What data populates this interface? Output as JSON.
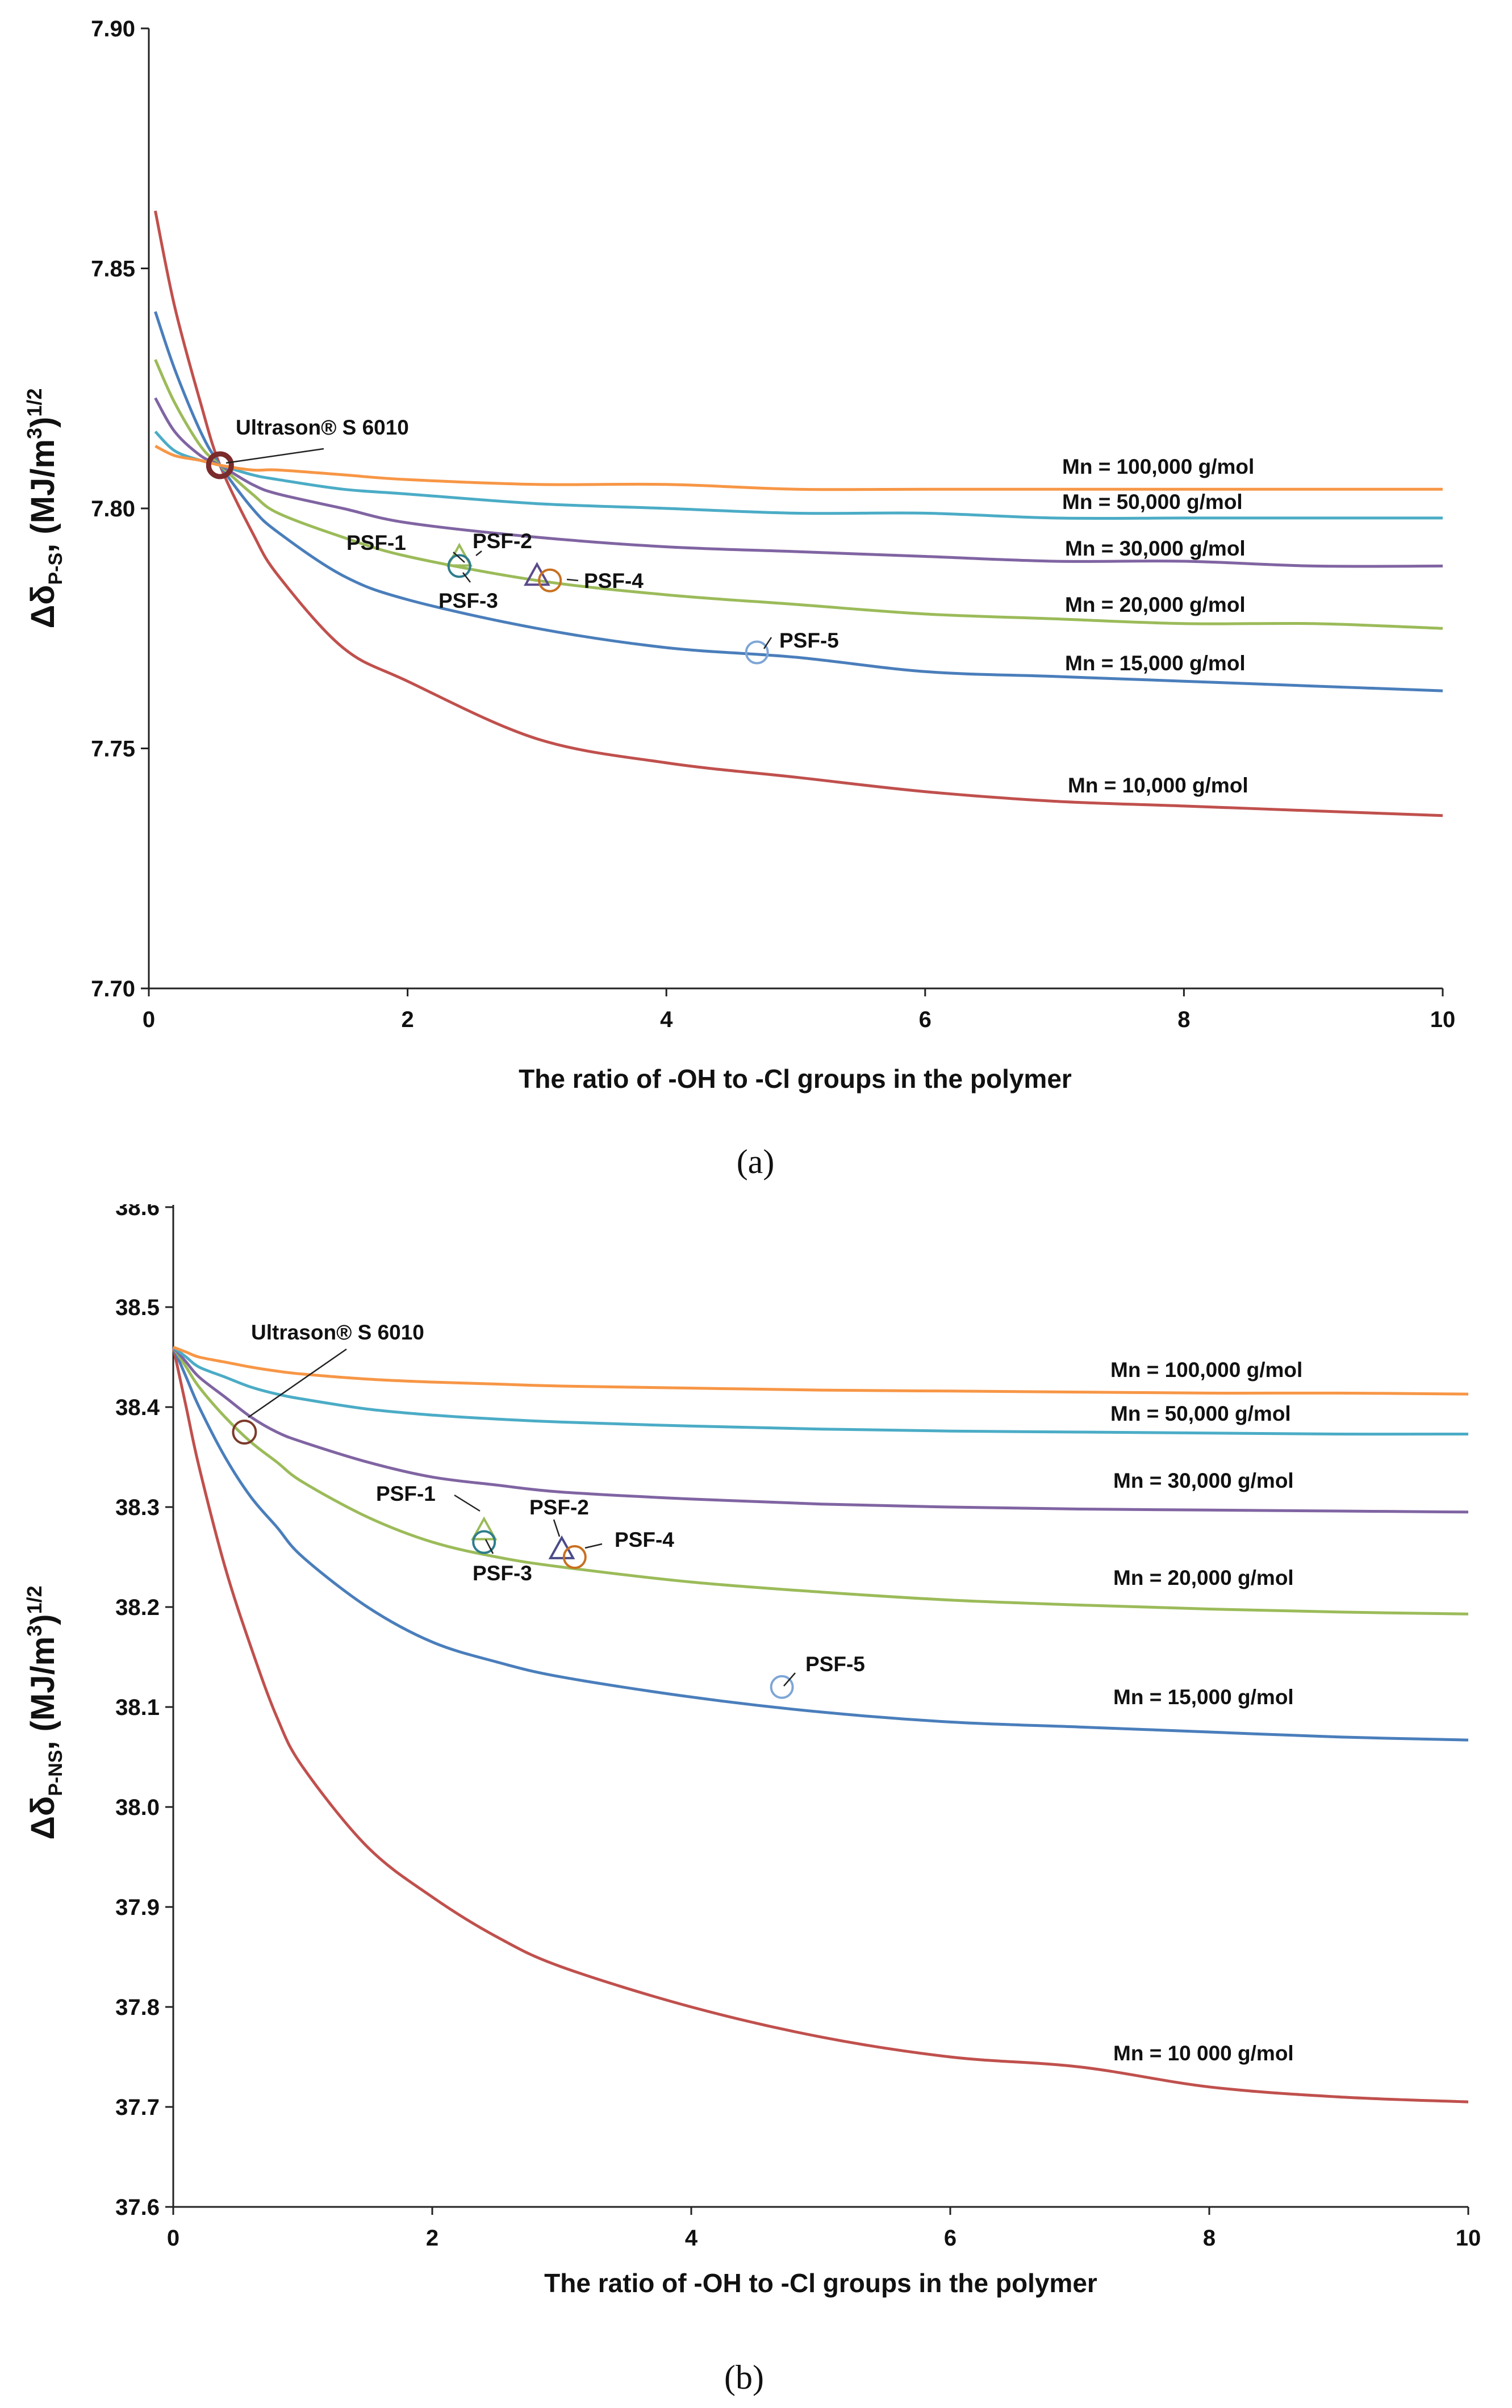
{
  "chart_data": [
    {
      "panel_label": "(a)",
      "type": "line",
      "xlabel": "The ratio of -OH to -Cl groups in the polymer",
      "ylabel": {
        "prefix": "Δδ",
        "sub": "P-S",
        "mid": ", (MJ/m",
        "sup1": "3",
        "close": ")",
        "sup2": "1/2"
      },
      "xlim": [
        0,
        10
      ],
      "ylim": [
        7.7,
        7.9
      ],
      "xticks": [
        "0",
        "2",
        "4",
        "6",
        "8",
        "10"
      ],
      "yticks": [
        "7.70",
        "7.75",
        "7.80",
        "7.85",
        "7.90"
      ],
      "series": [
        {
          "name": "Mn = 10,000 g/mol",
          "color": "#c0504d",
          "x": [
            0.05,
            0.2,
            0.4,
            0.55,
            0.8,
            1.0,
            1.5,
            2.0,
            3.0,
            4.0,
            5.0,
            6.0,
            7.0,
            8.0,
            9.0,
            10.0
          ],
          "y": [
            7.862,
            7.842,
            7.822,
            7.809,
            7.795,
            7.786,
            7.771,
            7.764,
            7.752,
            7.747,
            7.744,
            7.741,
            7.739,
            7.738,
            7.737,
            7.736
          ]
        },
        {
          "name": "Mn = 15,000 g/mol",
          "color": "#4a7ebb",
          "x": [
            0.05,
            0.2,
            0.4,
            0.55,
            0.8,
            1.0,
            1.5,
            2.0,
            3.0,
            4.0,
            5.0,
            6.0,
            7.0,
            8.0,
            9.0,
            10.0
          ],
          "y": [
            7.841,
            7.829,
            7.816,
            7.809,
            7.8,
            7.795,
            7.786,
            7.781,
            7.775,
            7.771,
            7.769,
            7.766,
            7.765,
            7.764,
            7.763,
            7.762
          ]
        },
        {
          "name": "Mn = 20,000 g/mol",
          "color": "#9bbb59",
          "x": [
            0.05,
            0.2,
            0.4,
            0.55,
            0.8,
            1.0,
            1.5,
            2.0,
            3.0,
            4.0,
            5.0,
            6.0,
            7.0,
            8.0,
            9.0,
            10.0
          ],
          "y": [
            7.831,
            7.822,
            7.813,
            7.809,
            7.803,
            7.799,
            7.794,
            7.79,
            7.785,
            7.782,
            7.78,
            7.778,
            7.777,
            7.776,
            7.776,
            7.775
          ]
        },
        {
          "name": "Mn = 30,000 g/mol",
          "color": "#8064a2",
          "x": [
            0.05,
            0.2,
            0.4,
            0.55,
            0.8,
            1.0,
            1.5,
            2.0,
            3.0,
            4.0,
            5.0,
            6.0,
            7.0,
            8.0,
            9.0,
            10.0
          ],
          "y": [
            7.823,
            7.816,
            7.811,
            7.809,
            7.805,
            7.803,
            7.8,
            7.797,
            7.794,
            7.792,
            7.791,
            7.79,
            7.789,
            7.789,
            7.788,
            7.788
          ]
        },
        {
          "name": "Mn = 50,000 g/mol",
          "color": "#4bacc6",
          "x": [
            0.05,
            0.2,
            0.4,
            0.55,
            0.8,
            1.0,
            1.5,
            2.0,
            3.0,
            4.0,
            5.0,
            6.0,
            7.0,
            8.0,
            9.0,
            10.0
          ],
          "y": [
            7.816,
            7.812,
            7.81,
            7.809,
            7.807,
            7.806,
            7.804,
            7.803,
            7.801,
            7.8,
            7.799,
            7.799,
            7.798,
            7.798,
            7.798,
            7.798
          ]
        },
        {
          "name": "Mn = 100,000 g/mol",
          "color": "#f79646",
          "x": [
            0.05,
            0.2,
            0.4,
            0.55,
            0.8,
            1.0,
            1.5,
            2.0,
            3.0,
            4.0,
            5.0,
            6.0,
            7.0,
            8.0,
            9.0,
            10.0
          ],
          "y": [
            7.813,
            7.811,
            7.81,
            7.809,
            7.808,
            7.808,
            7.807,
            7.806,
            7.805,
            7.805,
            7.804,
            7.804,
            7.804,
            7.804,
            7.804,
            7.804
          ]
        }
      ],
      "points": [
        {
          "label": "Ultrason® S 6010",
          "x": 0.55,
          "y": 7.809,
          "shape": "circle",
          "color": "#7b2b2b"
        },
        {
          "label": "PSF-1",
          "x": 2.4,
          "y": 7.79,
          "shape": "triangle",
          "color": "#9bbb59"
        },
        {
          "label": "PSF-2",
          "x": 3.0,
          "y": 7.786,
          "shape": "triangle",
          "color": "#5a4a8a"
        },
        {
          "label": "PSF-3",
          "x": 2.4,
          "y": 7.788,
          "shape": "circle",
          "color": "#2e7d8c"
        },
        {
          "label": "PSF-4",
          "x": 3.1,
          "y": 7.785,
          "shape": "circle",
          "color": "#c8701f"
        },
        {
          "label": "PSF-5",
          "x": 4.7,
          "y": 7.77,
          "shape": "circle",
          "color": "#7ea6d6"
        }
      ]
    },
    {
      "panel_label": "(b)",
      "type": "line",
      "xlabel": "The ratio of -OH to -Cl groups in the polymer",
      "ylabel": {
        "prefix": "Δδ",
        "sub": "P-NS",
        "mid": ", (MJ/m",
        "sup1": "3",
        "close": ")",
        "sup2": "1/2"
      },
      "xlim": [
        0,
        10
      ],
      "ylim": [
        37.6,
        38.6
      ],
      "xticks": [
        "0",
        "2",
        "4",
        "6",
        "8",
        "10"
      ],
      "yticks": [
        "37.6",
        "37.7",
        "37.8",
        "37.9",
        "38.0",
        "38.1",
        "38.2",
        "38.3",
        "38.4",
        "38.5",
        "38.6"
      ],
      "series": [
        {
          "name": "Mn = 10 000 g/mol",
          "color": "#c0504d",
          "x": [
            0.0,
            0.1,
            0.2,
            0.4,
            0.6,
            0.8,
            1.0,
            1.5,
            2.0,
            2.5,
            3.0,
            4.0,
            5.0,
            6.0,
            7.0,
            8.0,
            9.0,
            10.0
          ],
          "y": [
            38.46,
            38.4,
            38.34,
            38.24,
            38.16,
            38.09,
            38.04,
            37.96,
            37.91,
            37.87,
            37.84,
            37.8,
            37.77,
            37.75,
            37.74,
            37.72,
            37.71,
            37.705
          ]
        },
        {
          "name": "Mn = 15,000 g/mol",
          "color": "#4a7ebb",
          "x": [
            0.0,
            0.1,
            0.2,
            0.4,
            0.6,
            0.8,
            1.0,
            1.5,
            2.0,
            2.5,
            3.0,
            4.0,
            5.0,
            6.0,
            7.0,
            8.0,
            9.0,
            10.0
          ],
          "y": [
            38.46,
            38.43,
            38.4,
            38.35,
            38.31,
            38.28,
            38.25,
            38.2,
            38.165,
            38.145,
            38.13,
            38.11,
            38.095,
            38.085,
            38.08,
            38.075,
            38.07,
            38.067
          ]
        },
        {
          "name": "Mn = 20,000 g/mol",
          "color": "#9bbb59",
          "x": [
            0.0,
            0.1,
            0.2,
            0.4,
            0.6,
            0.8,
            1.0,
            1.5,
            2.0,
            2.5,
            3.0,
            4.0,
            5.0,
            6.0,
            7.0,
            8.0,
            9.0,
            10.0
          ],
          "y": [
            38.46,
            38.44,
            38.42,
            38.39,
            38.365,
            38.345,
            38.325,
            38.29,
            38.265,
            38.25,
            38.24,
            38.225,
            38.215,
            38.207,
            38.202,
            38.198,
            38.195,
            38.193
          ]
        },
        {
          "name": "Mn = 30,000 g/mol",
          "color": "#8064a2",
          "x": [
            0.0,
            0.1,
            0.2,
            0.4,
            0.6,
            0.8,
            1.0,
            1.5,
            2.0,
            2.5,
            3.0,
            4.0,
            5.0,
            6.0,
            7.0,
            8.0,
            9.0,
            10.0
          ],
          "y": [
            38.46,
            38.445,
            38.43,
            38.41,
            38.39,
            38.375,
            38.365,
            38.345,
            38.33,
            38.322,
            38.315,
            38.308,
            38.303,
            38.3,
            38.298,
            38.297,
            38.296,
            38.295
          ]
        },
        {
          "name": "Mn = 50,000 g/mol",
          "color": "#4bacc6",
          "x": [
            0.0,
            0.1,
            0.2,
            0.4,
            0.6,
            0.8,
            1.0,
            1.5,
            2.0,
            2.5,
            3.0,
            4.0,
            5.0,
            6.0,
            7.0,
            8.0,
            9.0,
            10.0
          ],
          "y": [
            38.46,
            38.45,
            38.44,
            38.43,
            38.42,
            38.413,
            38.408,
            38.398,
            38.392,
            38.388,
            38.385,
            38.381,
            38.378,
            38.376,
            38.375,
            38.374,
            38.373,
            38.373
          ]
        },
        {
          "name": "Mn = 100,000 g/mol",
          "color": "#f79646",
          "x": [
            0.0,
            0.1,
            0.2,
            0.4,
            0.6,
            0.8,
            1.0,
            1.5,
            2.0,
            2.5,
            3.0,
            4.0,
            5.0,
            6.0,
            7.0,
            8.0,
            9.0,
            10.0
          ],
          "y": [
            38.46,
            38.455,
            38.45,
            38.445,
            38.44,
            38.436,
            38.433,
            38.428,
            38.425,
            38.423,
            38.421,
            38.419,
            38.417,
            38.416,
            38.415,
            38.414,
            38.414,
            38.413
          ]
        }
      ],
      "points": [
        {
          "label": "Ultrason® S 6010",
          "x": 0.55,
          "y": 38.375,
          "shape": "circle",
          "color": "#7b3a2a"
        },
        {
          "label": "PSF-1",
          "x": 2.4,
          "y": 38.277,
          "shape": "triangle",
          "color": "#9bbb59"
        },
        {
          "label": "PSF-2",
          "x": 3.0,
          "y": 38.258,
          "shape": "triangle",
          "color": "#4a4a8a"
        },
        {
          "label": "PSF-3",
          "x": 2.4,
          "y": 38.265,
          "shape": "circle",
          "color": "#2e7d8c"
        },
        {
          "label": "PSF-4",
          "x": 3.1,
          "y": 38.25,
          "shape": "circle",
          "color": "#c8701f"
        },
        {
          "label": "PSF-5",
          "x": 4.7,
          "y": 38.12,
          "shape": "circle",
          "color": "#7ea6d6"
        }
      ]
    }
  ]
}
